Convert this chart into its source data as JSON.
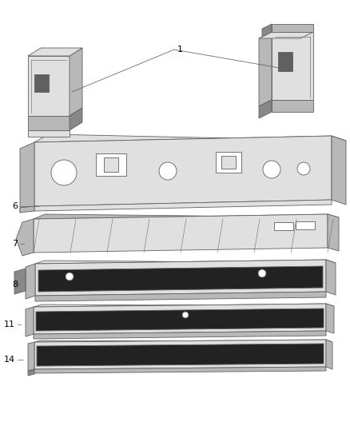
{
  "bg_color": "#ffffff",
  "lc": "#606060",
  "fc_light": "#e0e0e0",
  "fc_mid": "#b8b8b8",
  "fc_dark": "#888888",
  "fc_darker": "#606060",
  "fc_black": "#222222",
  "fc_white": "#ffffff",
  "label_fontsize": 8,
  "figsize": [
    4.38,
    5.33
  ],
  "dpi": 100
}
